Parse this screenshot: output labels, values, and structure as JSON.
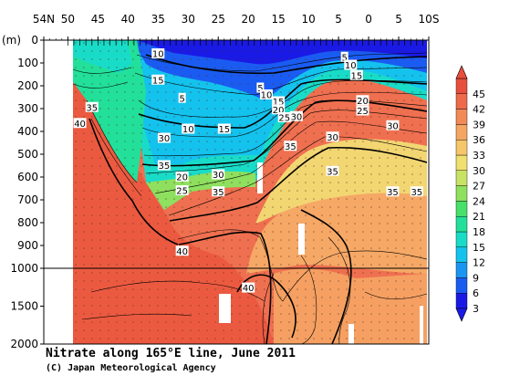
{
  "chart_data": {
    "type": "heatmap",
    "title": "Nitrate along 165°E line, June 2011",
    "credit": "(C) Japan Meteorological Agency",
    "ylabel": "(m)",
    "x_ticks": [
      "54N",
      "50",
      "45",
      "40",
      "35",
      "30",
      "25",
      "20",
      "15",
      "10",
      "5",
      "0",
      "5",
      "10S"
    ],
    "x_values": [
      54,
      50,
      45,
      40,
      35,
      30,
      25,
      20,
      15,
      10,
      5,
      0,
      -5,
      -10
    ],
    "y_ticks_upper": [
      0,
      100,
      200,
      300,
      400,
      500,
      600,
      700,
      800,
      900,
      1000
    ],
    "y_ticks_lower": [
      1500,
      2000
    ],
    "y_axis": "depth (m), linear 0-1000 then compressed 1000-2000",
    "colorbar": {
      "levels": [
        3,
        6,
        9,
        12,
        15,
        18,
        21,
        24,
        27,
        30,
        33,
        36,
        39,
        42,
        45
      ],
      "colors": [
        "#1a1ae6",
        "#1a5cf2",
        "#1a96f2",
        "#14c2ee",
        "#18dcc8",
        "#22e09a",
        "#46e06a",
        "#8ee05e",
        "#c8e264",
        "#f0e070",
        "#f6c66a",
        "#f4a662",
        "#f28a58",
        "#ee6a4a",
        "#e84e3e"
      ]
    },
    "contour_labels": [
      {
        "text": "10",
        "lat": 35,
        "depth": 60
      },
      {
        "text": "15",
        "lat": 35,
        "depth": 175
      },
      {
        "text": "35",
        "lat": 46,
        "depth": 295
      },
      {
        "text": "40",
        "lat": 48,
        "depth": 365
      },
      {
        "text": "5",
        "lat": 31,
        "depth": 255
      },
      {
        "text": "10",
        "lat": 30,
        "depth": 390
      },
      {
        "text": "15",
        "lat": 24,
        "depth": 390
      },
      {
        "text": "30",
        "lat": 34,
        "depth": 430
      },
      {
        "text": "35",
        "lat": 34,
        "depth": 550
      },
      {
        "text": "20",
        "lat": 31,
        "depth": 600
      },
      {
        "text": "25",
        "lat": 31,
        "depth": 660
      },
      {
        "text": "30",
        "lat": 25,
        "depth": 590
      },
      {
        "text": "35",
        "lat": 25,
        "depth": 665
      },
      {
        "text": "40",
        "lat": 31,
        "depth": 925
      },
      {
        "text": "5",
        "lat": 18,
        "depth": 210
      },
      {
        "text": "10",
        "lat": 17,
        "depth": 240
      },
      {
        "text": "15",
        "lat": 15,
        "depth": 270
      },
      {
        "text": "20",
        "lat": 15,
        "depth": 305
      },
      {
        "text": "25",
        "lat": 14,
        "depth": 340
      },
      {
        "text": "30",
        "lat": 12,
        "depth": 335
      },
      {
        "text": "35",
        "lat": 13,
        "depth": 465
      },
      {
        "text": "5",
        "lat": 4,
        "depth": 75
      },
      {
        "text": "10",
        "lat": 3,
        "depth": 110
      },
      {
        "text": "15",
        "lat": 2,
        "depth": 155
      },
      {
        "text": "20",
        "lat": 1,
        "depth": 265
      },
      {
        "text": "25",
        "lat": 1,
        "depth": 310
      },
      {
        "text": "30",
        "lat": 6,
        "depth": 425
      },
      {
        "text": "30",
        "lat": -4,
        "depth": 375
      },
      {
        "text": "35",
        "lat": 6,
        "depth": 575
      },
      {
        "text": "35",
        "lat": -4,
        "depth": 665
      },
      {
        "text": "35",
        "lat": -8,
        "depth": 665
      },
      {
        "text": "40",
        "lat": 20,
        "depth": 1260
      }
    ]
  }
}
